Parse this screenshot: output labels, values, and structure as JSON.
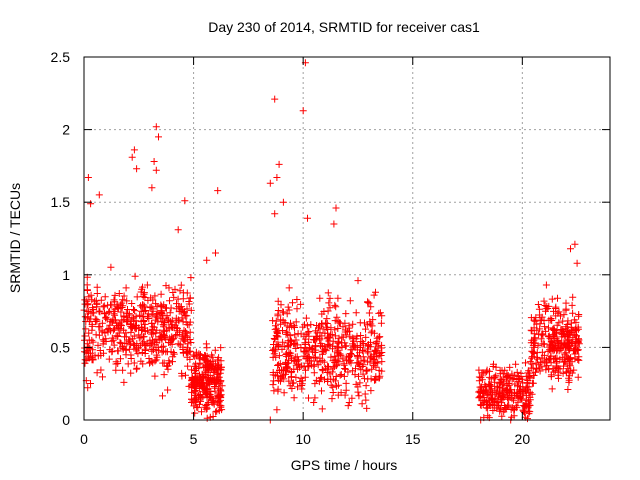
{
  "chart_data": {
    "type": "scatter",
    "title": "Day 230 of 2014, SRMTID for receiver cas1",
    "xlabel": "GPS time / hours",
    "ylabel": "SRMTID / TECUs",
    "xlim": [
      0,
      24
    ],
    "ylim": [
      0,
      2.5
    ],
    "x_ticks": [
      0,
      5,
      10,
      15,
      20
    ],
    "x_tick_labels": [
      "0",
      "5",
      "10",
      "15",
      "20"
    ],
    "y_ticks": [
      0,
      0.5,
      1,
      1.5,
      2,
      2.5
    ],
    "y_tick_labels": [
      "0",
      "0.5",
      "1",
      "1.5",
      "2",
      "2.5"
    ],
    "grid": true,
    "marker": "+",
    "series_color": "#ff0000",
    "clusters": [
      {
        "x_range": [
          0.0,
          4.9
        ],
        "y_range": [
          0.25,
          1.0
        ],
        "density": 520,
        "note": "dense band of points mostly 0.3-1.0 TECU"
      },
      {
        "x_range": [
          4.9,
          6.3
        ],
        "y_range": [
          0.0,
          0.5
        ],
        "density": 260,
        "note": "low cluster near zero"
      },
      {
        "x_range": [
          8.6,
          13.6
        ],
        "y_range": [
          0.05,
          0.9
        ],
        "density": 520,
        "note": "second dense band"
      },
      {
        "x_range": [
          18.0,
          20.4
        ],
        "y_range": [
          0.05,
          0.35
        ],
        "density": 260,
        "note": "low band"
      },
      {
        "x_range": [
          20.4,
          22.6
        ],
        "y_range": [
          0.2,
          0.85
        ],
        "density": 300,
        "note": "rising band"
      }
    ],
    "notable_points": [
      {
        "x": 0.2,
        "y": 1.67
      },
      {
        "x": 0.7,
        "y": 1.55
      },
      {
        "x": 0.3,
        "y": 1.49
      },
      {
        "x": 2.3,
        "y": 1.86
      },
      {
        "x": 2.2,
        "y": 1.81
      },
      {
        "x": 2.4,
        "y": 1.73
      },
      {
        "x": 3.3,
        "y": 2.02
      },
      {
        "x": 3.4,
        "y": 1.95
      },
      {
        "x": 3.2,
        "y": 1.78
      },
      {
        "x": 3.3,
        "y": 1.72
      },
      {
        "x": 3.1,
        "y": 1.6
      },
      {
        "x": 4.6,
        "y": 1.51
      },
      {
        "x": 4.3,
        "y": 1.31
      },
      {
        "x": 6.1,
        "y": 1.58
      },
      {
        "x": 6.0,
        "y": 1.15
      },
      {
        "x": 5.6,
        "y": 1.1
      },
      {
        "x": 8.7,
        "y": 2.21
      },
      {
        "x": 10.1,
        "y": 2.46
      },
      {
        "x": 10.0,
        "y": 2.13
      },
      {
        "x": 8.9,
        "y": 1.76
      },
      {
        "x": 8.8,
        "y": 1.67
      },
      {
        "x": 8.5,
        "y": 1.63
      },
      {
        "x": 9.1,
        "y": 1.5
      },
      {
        "x": 8.7,
        "y": 1.42
      },
      {
        "x": 10.2,
        "y": 1.39
      },
      {
        "x": 11.5,
        "y": 1.46
      },
      {
        "x": 11.4,
        "y": 1.35
      },
      {
        "x": 12.5,
        "y": 0.96
      },
      {
        "x": 13.3,
        "y": 0.88
      },
      {
        "x": 22.4,
        "y": 1.21
      },
      {
        "x": 22.2,
        "y": 1.18
      },
      {
        "x": 22.5,
        "y": 1.08
      },
      {
        "x": 21.1,
        "y": 0.93
      },
      {
        "x": 8.5,
        "y": 0.0
      },
      {
        "x": 18.1,
        "y": 0.0
      }
    ]
  }
}
